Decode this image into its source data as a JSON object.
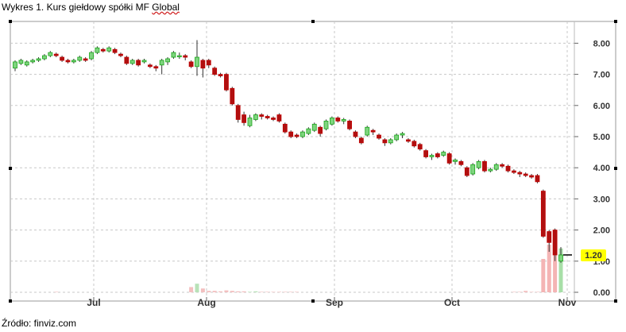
{
  "caption": {
    "prefix": "Wykres 1. Kurs giełdowy spółki MF ",
    "underlined": "Global"
  },
  "source": "Źródło: finviz.com",
  "chart_data": {
    "type": "candlestick",
    "title": "",
    "xlabel": "",
    "ylabel": "",
    "ylim": [
      0,
      8.5
    ],
    "y_ticks": [
      "8.00",
      "7.00",
      "6.00",
      "5.00",
      "4.00",
      "3.00",
      "2.00",
      "1.00",
      "0.00"
    ],
    "x_ticks": [
      "Jul",
      "Aug",
      "Sep",
      "Oct",
      "Nov"
    ],
    "grid": true,
    "last_price_label": "1.20",
    "last_price": 1.2,
    "colors": {
      "up": "#1aa51a",
      "up_fill": "#7ed47e",
      "down": "#c00000",
      "down_fill": "#b01010",
      "highlight": "#ffff00"
    },
    "candles": [
      [
        7.2,
        7.4,
        7.1,
        7.45
      ],
      [
        7.35,
        7.45,
        7.3,
        7.5
      ],
      [
        7.3,
        7.4,
        7.25,
        7.45
      ],
      [
        7.4,
        7.45,
        7.35,
        7.5
      ],
      [
        7.45,
        7.5,
        7.4,
        7.55
      ],
      [
        7.5,
        7.6,
        7.45,
        7.65
      ],
      [
        7.6,
        7.7,
        7.55,
        7.75
      ],
      [
        7.65,
        7.6,
        7.55,
        7.7
      ],
      [
        7.55,
        7.45,
        7.4,
        7.6
      ],
      [
        7.45,
        7.4,
        7.35,
        7.5
      ],
      [
        7.4,
        7.45,
        7.35,
        7.5
      ],
      [
        7.45,
        7.55,
        7.4,
        7.6
      ],
      [
        7.5,
        7.45,
        7.4,
        7.55
      ],
      [
        7.5,
        7.7,
        7.45,
        7.75
      ],
      [
        7.7,
        7.85,
        7.65,
        7.9
      ],
      [
        7.8,
        7.75,
        7.7,
        7.85
      ],
      [
        7.75,
        7.85,
        7.7,
        7.9
      ],
      [
        7.8,
        7.7,
        7.65,
        7.85
      ],
      [
        7.65,
        7.6,
        7.55,
        7.7
      ],
      [
        7.55,
        7.35,
        7.3,
        7.6
      ],
      [
        7.35,
        7.45,
        7.3,
        7.5
      ],
      [
        7.45,
        7.3,
        7.25,
        7.5
      ],
      [
        7.4,
        7.45,
        7.35,
        7.5
      ],
      [
        7.3,
        7.25,
        7.2,
        7.35
      ],
      [
        7.25,
        7.2,
        7.1,
        7.3
      ],
      [
        7.3,
        7.45,
        7.0,
        7.5
      ],
      [
        7.4,
        7.5,
        7.3,
        7.55
      ],
      [
        7.55,
        7.7,
        7.5,
        7.75
      ],
      [
        7.6,
        7.6,
        7.5,
        7.7
      ],
      [
        7.6,
        7.55,
        7.45,
        7.65
      ],
      [
        7.4,
        7.25,
        7.2,
        7.45
      ],
      [
        7.25,
        7.55,
        6.95,
        8.1
      ],
      [
        7.45,
        7.2,
        6.9,
        7.5
      ],
      [
        7.45,
        7.3,
        7.2,
        7.5
      ],
      [
        7.2,
        7.0,
        6.95,
        7.25
      ],
      [
        7.0,
        6.95,
        6.9,
        7.05
      ],
      [
        7.0,
        6.5,
        6.45,
        7.05
      ],
      [
        6.55,
        6.05,
        6.0,
        6.6
      ],
      [
        6.0,
        5.55,
        5.45,
        6.05
      ],
      [
        5.7,
        5.45,
        5.35,
        5.8
      ],
      [
        5.35,
        5.6,
        5.3,
        5.7
      ],
      [
        5.55,
        5.7,
        5.5,
        5.75
      ],
      [
        5.7,
        5.65,
        5.55,
        5.75
      ],
      [
        5.65,
        5.6,
        5.55,
        5.7
      ],
      [
        5.6,
        5.55,
        5.5,
        5.65
      ],
      [
        5.7,
        5.5,
        5.45,
        5.75
      ],
      [
        5.4,
        5.15,
        5.1,
        5.45
      ],
      [
        5.15,
        5.0,
        4.95,
        5.2
      ],
      [
        5.05,
        5.0,
        4.95,
        5.1
      ],
      [
        5.0,
        5.15,
        4.95,
        5.2
      ],
      [
        5.1,
        5.25,
        5.05,
        5.3
      ],
      [
        5.2,
        5.4,
        5.15,
        5.45
      ],
      [
        5.3,
        5.1,
        5.0,
        5.35
      ],
      [
        5.25,
        5.5,
        5.2,
        5.55
      ],
      [
        5.4,
        5.6,
        5.35,
        5.65
      ],
      [
        5.6,
        5.5,
        5.45,
        5.65
      ],
      [
        5.5,
        5.55,
        5.4,
        5.6
      ],
      [
        5.5,
        5.25,
        5.2,
        5.55
      ],
      [
        5.15,
        5.0,
        4.95,
        5.2
      ],
      [
        4.95,
        4.8,
        4.75,
        5.0
      ],
      [
        5.05,
        5.3,
        5.0,
        5.35
      ],
      [
        5.2,
        5.15,
        5.05,
        5.25
      ],
      [
        5.05,
        4.95,
        4.9,
        5.1
      ],
      [
        4.9,
        4.8,
        4.7,
        4.95
      ],
      [
        4.8,
        4.9,
        4.75,
        4.95
      ],
      [
        4.9,
        5.05,
        4.85,
        5.1
      ],
      [
        5.05,
        5.1,
        4.95,
        5.15
      ],
      [
        4.9,
        4.85,
        4.8,
        4.95
      ],
      [
        4.85,
        4.7,
        4.65,
        4.9
      ],
      [
        4.75,
        4.6,
        4.55,
        4.8
      ],
      [
        4.55,
        4.35,
        4.3,
        4.6
      ],
      [
        4.35,
        4.4,
        4.25,
        4.45
      ],
      [
        4.45,
        4.35,
        4.3,
        4.5
      ],
      [
        4.4,
        4.5,
        4.35,
        4.55
      ],
      [
        4.45,
        4.15,
        4.1,
        4.5
      ],
      [
        4.2,
        4.25,
        4.1,
        4.3
      ],
      [
        4.2,
        4.1,
        4.05,
        4.25
      ],
      [
        4.0,
        3.75,
        3.7,
        4.05
      ],
      [
        3.8,
        4.1,
        3.75,
        4.15
      ],
      [
        4.0,
        4.2,
        3.95,
        4.25
      ],
      [
        4.2,
        3.9,
        3.85,
        4.25
      ],
      [
        3.9,
        3.95,
        3.85,
        4.0
      ],
      [
        3.95,
        4.1,
        3.9,
        4.15
      ],
      [
        4.1,
        4.05,
        4.0,
        4.15
      ],
      [
        4.05,
        3.9,
        3.85,
        4.1
      ],
      [
        3.9,
        3.85,
        3.8,
        3.95
      ],
      [
        3.85,
        3.8,
        3.7,
        3.9
      ],
      [
        3.8,
        3.75,
        3.7,
        3.85
      ],
      [
        3.75,
        3.7,
        3.65,
        3.8
      ],
      [
        3.75,
        3.55,
        3.5,
        3.8
      ],
      [
        3.25,
        1.8,
        1.75,
        3.3
      ],
      [
        1.95,
        1.6,
        1.3,
        2.0
      ],
      [
        2.0,
        1.2,
        1.0,
        2.05
      ],
      [
        1.0,
        1.2,
        0.95,
        1.45
      ]
    ],
    "volumes": [
      0,
      0,
      0,
      0,
      0,
      0,
      0,
      0.01,
      0,
      0,
      0,
      0,
      0,
      0,
      0,
      0,
      0,
      0,
      0,
      0,
      0,
      0,
      0,
      0,
      0,
      0,
      0,
      0,
      0,
      0,
      0.11,
      0.18,
      0.08,
      0.03,
      0.03,
      0.02,
      0.04,
      0.03,
      0.02,
      0.02,
      0.01,
      0.02,
      0.01,
      0.01,
      0.01,
      0.01,
      0.01,
      0.01,
      0.01,
      0,
      0,
      0,
      0,
      0,
      0,
      0,
      0,
      0,
      0,
      0,
      0,
      0,
      0,
      0,
      0,
      0,
      0,
      0,
      0,
      0,
      0,
      0,
      0,
      0,
      0,
      0,
      0,
      0,
      0,
      0,
      0,
      0,
      0,
      0,
      0,
      0.01,
      0.01,
      0.03,
      0.01,
      0.01,
      0.7,
      1.0,
      0.85,
      0.92
    ]
  }
}
